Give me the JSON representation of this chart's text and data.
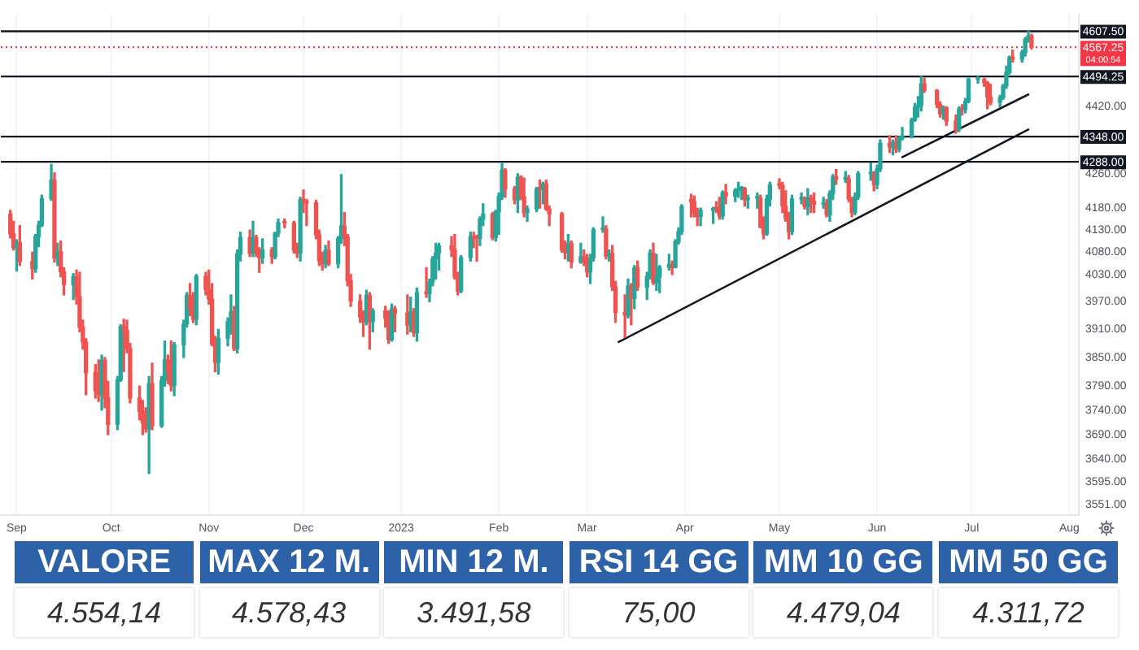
{
  "chart_data": [
    {
      "type": "candlestick",
      "x": [
        "2022-08-30",
        "2022-08-31",
        "2022-09-01",
        "2022-09-02",
        "2022-09-06",
        "2022-09-07",
        "2022-09-08",
        "2022-09-09",
        "2022-09-12",
        "2022-09-13",
        "2022-09-14",
        "2022-09-15",
        "2022-09-16",
        "2022-09-19",
        "2022-09-20",
        "2022-09-21",
        "2022-09-22",
        "2022-09-23",
        "2022-09-26",
        "2022-09-27",
        "2022-09-28",
        "2022-09-29",
        "2022-09-30",
        "2022-10-03",
        "2022-10-04",
        "2022-10-05",
        "2022-10-06",
        "2022-10-07",
        "2022-10-10",
        "2022-10-11",
        "2022-10-12",
        "2022-10-13",
        "2022-10-14",
        "2022-10-17",
        "2022-10-18",
        "2022-10-19",
        "2022-10-20",
        "2022-10-21",
        "2022-10-24",
        "2022-10-25",
        "2022-10-26",
        "2022-10-27",
        "2022-10-28",
        "2022-10-31",
        "2022-11-01",
        "2022-11-02",
        "2022-11-03",
        "2022-11-04",
        "2022-11-07",
        "2022-11-08",
        "2022-11-09",
        "2022-11-10",
        "2022-11-11",
        "2022-11-14",
        "2022-11-15",
        "2022-11-16",
        "2022-11-17",
        "2022-11-18",
        "2022-11-21",
        "2022-11-22",
        "2022-11-23",
        "2022-11-25",
        "2022-11-28",
        "2022-11-29",
        "2022-11-30",
        "2022-12-01",
        "2022-12-02",
        "2022-12-05",
        "2022-12-06",
        "2022-12-07",
        "2022-12-08",
        "2022-12-09",
        "2022-12-12",
        "2022-12-13",
        "2022-12-14",
        "2022-12-15",
        "2022-12-16",
        "2022-12-19",
        "2022-12-20",
        "2022-12-21",
        "2022-12-22",
        "2022-12-23",
        "2022-12-27",
        "2022-12-28",
        "2022-12-29",
        "2022-12-30",
        "2023-01-03",
        "2023-01-04",
        "2023-01-05",
        "2023-01-06",
        "2023-01-09",
        "2023-01-10",
        "2023-01-11",
        "2023-01-12",
        "2023-01-13",
        "2023-01-17",
        "2023-01-18",
        "2023-01-19",
        "2023-01-20",
        "2023-01-23",
        "2023-01-24",
        "2023-01-25",
        "2023-01-26",
        "2023-01-27",
        "2023-01-30",
        "2023-01-31",
        "2023-02-01",
        "2023-02-02",
        "2023-02-03",
        "2023-02-06",
        "2023-02-07",
        "2023-02-08",
        "2023-02-09",
        "2023-02-10",
        "2023-02-13",
        "2023-02-14",
        "2023-02-15",
        "2023-02-16",
        "2023-02-17",
        "2023-02-21",
        "2023-02-22",
        "2023-02-23",
        "2023-02-24",
        "2023-02-27",
        "2023-02-28",
        "2023-03-01",
        "2023-03-02",
        "2023-03-03",
        "2023-03-06",
        "2023-03-07",
        "2023-03-08",
        "2023-03-09",
        "2023-03-10",
        "2023-03-13",
        "2023-03-14",
        "2023-03-15",
        "2023-03-16",
        "2023-03-17",
        "2023-03-20",
        "2023-03-21",
        "2023-03-22",
        "2023-03-23",
        "2023-03-24",
        "2023-03-27",
        "2023-03-28",
        "2023-03-29",
        "2023-03-30",
        "2023-03-31",
        "2023-04-03",
        "2023-04-04",
        "2023-04-05",
        "2023-04-06",
        "2023-04-10",
        "2023-04-11",
        "2023-04-12",
        "2023-04-13",
        "2023-04-14",
        "2023-04-17",
        "2023-04-18",
        "2023-04-19",
        "2023-04-20",
        "2023-04-21",
        "2023-04-24",
        "2023-04-25",
        "2023-04-26",
        "2023-04-27",
        "2023-04-28",
        "2023-05-01",
        "2023-05-02",
        "2023-05-03",
        "2023-05-04",
        "2023-05-05",
        "2023-05-08",
        "2023-05-09",
        "2023-05-10",
        "2023-05-11",
        "2023-05-12",
        "2023-05-15",
        "2023-05-16",
        "2023-05-17",
        "2023-05-18",
        "2023-05-19",
        "2023-05-22",
        "2023-05-23",
        "2023-05-24",
        "2023-05-25",
        "2023-05-26",
        "2023-05-30",
        "2023-05-31",
        "2023-06-01",
        "2023-06-02",
        "2023-06-05",
        "2023-06-06",
        "2023-06-07",
        "2023-06-08",
        "2023-06-09",
        "2023-06-12",
        "2023-06-13",
        "2023-06-14",
        "2023-06-15",
        "2023-06-16",
        "2023-06-20",
        "2023-06-21",
        "2023-06-22",
        "2023-06-23",
        "2023-06-26",
        "2023-06-27",
        "2023-06-28",
        "2023-06-29",
        "2023-06-30",
        "2023-07-03",
        "2023-07-05",
        "2023-07-06",
        "2023-07-07",
        "2023-07-10",
        "2023-07-11",
        "2023-07-12",
        "2023-07-13",
        "2023-07-14",
        "2023-07-17",
        "2023-07-18",
        "2023-07-19",
        "2023-07-20"
      ],
      "ohlc": [
        [
          4166,
          4175,
          4112,
          4121
        ],
        [
          4121,
          4150,
          4085,
          4090
        ],
        [
          4090,
          4108,
          4038,
          4101
        ],
        [
          4101,
          4140,
          4050,
          4059
        ],
        [
          4059,
          4080,
          4020,
          4043
        ],
        [
          4043,
          4120,
          4035,
          4115
        ],
        [
          4115,
          4150,
          4092,
          4141
        ],
        [
          4141,
          4210,
          4138,
          4202
        ],
        [
          4202,
          4282,
          4198,
          4245
        ],
        [
          4245,
          4262,
          4058,
          4067
        ],
        [
          4067,
          4100,
          4050,
          4081
        ],
        [
          4081,
          4105,
          4025,
          4036
        ],
        [
          4036,
          4045,
          3985,
          4008
        ],
        [
          4008,
          4032,
          3975,
          4025
        ],
        [
          4025,
          4040,
          3965,
          3981
        ],
        [
          3981,
          4035,
          3905,
          3915
        ],
        [
          3915,
          3930,
          3868,
          3883
        ],
        [
          3883,
          3890,
          3772,
          3818
        ],
        [
          3818,
          3835,
          3765,
          3780
        ],
        [
          3780,
          3845,
          3758,
          3772
        ],
        [
          3772,
          3855,
          3740,
          3844
        ],
        [
          3844,
          3850,
          3745,
          3765
        ],
        [
          3765,
          3800,
          3690,
          3711
        ],
        [
          3711,
          3810,
          3700,
          3803
        ],
        [
          3803,
          3920,
          3800,
          3916
        ],
        [
          3916,
          3932,
          3820,
          3908
        ],
        [
          3908,
          3930,
          3860,
          3869
        ],
        [
          3869,
          3880,
          3755,
          3765
        ],
        [
          3765,
          3790,
          3720,
          3737
        ],
        [
          3737,
          3760,
          3690,
          3714
        ],
        [
          3714,
          3745,
          3695,
          3702
        ],
        [
          3702,
          3810,
          3612,
          3795
        ],
        [
          3795,
          3838,
          3700,
          3708
        ],
        [
          3708,
          3810,
          3705,
          3802
        ],
        [
          3802,
          3885,
          3790,
          3845
        ],
        [
          3845,
          3855,
          3795,
          3820
        ],
        [
          3820,
          3885,
          3780,
          3791
        ],
        [
          3791,
          3882,
          3770,
          3877
        ],
        [
          3877,
          3930,
          3850,
          3922
        ],
        [
          3922,
          3990,
          3915,
          3984
        ],
        [
          3984,
          4010,
          3940,
          3955
        ],
        [
          3955,
          3990,
          3925,
          3932
        ],
        [
          3932,
          4030,
          3920,
          4026
        ],
        [
          4026,
          4035,
          3985,
          3997
        ],
        [
          3997,
          4040,
          3965,
          3976
        ],
        [
          3976,
          4010,
          3875,
          3879
        ],
        [
          3879,
          3895,
          3820,
          3840
        ],
        [
          3840,
          3910,
          3815,
          3891
        ],
        [
          3891,
          3935,
          3875,
          3927
        ],
        [
          3927,
          3985,
          3900,
          3948
        ],
        [
          3948,
          3960,
          3865,
          3869
        ],
        [
          3869,
          4085,
          3860,
          4076
        ],
        [
          4076,
          4125,
          4060,
          4113
        ],
        [
          4113,
          4130,
          4070,
          4077
        ],
        [
          4077,
          4150,
          4070,
          4112
        ],
        [
          4112,
          4118,
          4070,
          4079
        ],
        [
          4079,
          4090,
          4035,
          4067
        ],
        [
          4067,
          4110,
          4055,
          4085
        ],
        [
          4085,
          4090,
          4055,
          4070
        ],
        [
          4070,
          4125,
          4065,
          4123
        ],
        [
          4123,
          4155,
          4115,
          4147
        ],
        [
          4147,
          4155,
          4135,
          4146
        ],
        [
          4146,
          4150,
          4078,
          4084
        ],
        [
          4084,
          4100,
          4068,
          4078
        ],
        [
          4078,
          4205,
          4060,
          4200
        ],
        [
          4200,
          4222,
          4170,
          4196
        ],
        [
          4196,
          4200,
          4140,
          4192
        ],
        [
          4192,
          4198,
          4110,
          4119
        ],
        [
          4119,
          4130,
          4050,
          4061
        ],
        [
          4061,
          4080,
          4040,
          4054
        ],
        [
          4054,
          4095,
          4045,
          4084
        ],
        [
          4084,
          4105,
          4050,
          4054
        ],
        [
          4054,
          4115,
          4045,
          4111
        ],
        [
          4111,
          4258,
          4100,
          4139
        ],
        [
          4139,
          4170,
          4095,
          4115
        ],
        [
          4115,
          4120,
          4005,
          4016
        ],
        [
          4016,
          4030,
          3960,
          3972
        ],
        [
          3972,
          3985,
          3925,
          3937
        ],
        [
          3937,
          3950,
          3895,
          3926
        ],
        [
          3926,
          3995,
          3920,
          3984
        ],
        [
          3984,
          3990,
          3868,
          3927
        ],
        [
          3927,
          3955,
          3905,
          3950
        ],
        [
          3950,
          3960,
          3915,
          3934
        ],
        [
          3934,
          3950,
          3880,
          3888
        ],
        [
          3888,
          3965,
          3885,
          3954
        ],
        [
          3954,
          3960,
          3905,
          3945
        ],
        [
          3945,
          3985,
          3900,
          3919
        ],
        [
          3919,
          3980,
          3905,
          3948
        ],
        [
          3948,
          3955,
          3895,
          3903
        ],
        [
          3903,
          4000,
          3885,
          3990
        ],
        [
          3990,
          4045,
          3980,
          3988
        ],
        [
          3988,
          4020,
          3970,
          4014
        ],
        [
          4014,
          4070,
          4005,
          4065
        ],
        [
          4065,
          4100,
          4020,
          4078
        ],
        [
          4078,
          4100,
          4040,
          4094
        ],
        [
          4094,
          4115,
          4070,
          4086
        ],
        [
          4086,
          4120,
          4020,
          4024
        ],
        [
          4024,
          4035,
          3985,
          3993
        ],
        [
          3993,
          4072,
          3990,
          4068
        ],
        [
          4068,
          4125,
          4060,
          4115
        ],
        [
          4115,
          4125,
          4090,
          4112
        ],
        [
          4112,
          4118,
          4060,
          4111
        ],
        [
          4111,
          4160,
          4095,
          4155
        ],
        [
          4155,
          4190,
          4140,
          4166
        ],
        [
          4166,
          4170,
          4108,
          4113
        ],
        [
          4113,
          4175,
          4105,
          4172
        ],
        [
          4172,
          4215,
          4120,
          4207
        ],
        [
          4207,
          4284,
          4200,
          4268
        ],
        [
          4268,
          4272,
          4205,
          4224
        ],
        [
          4224,
          4230,
          4190,
          4199
        ],
        [
          4199,
          4260,
          4170,
          4252
        ],
        [
          4252,
          4255,
          4200,
          4206
        ],
        [
          4206,
          4250,
          4160,
          4170
        ],
        [
          4170,
          4185,
          4150,
          4178
        ],
        [
          4178,
          4228,
          4172,
          4225
        ],
        [
          4225,
          4245,
          4180,
          4224
        ],
        [
          4224,
          4240,
          4190,
          4236
        ],
        [
          4236,
          4245,
          4175,
          4178
        ],
        [
          4178,
          4185,
          4140,
          4167
        ],
        [
          4167,
          4170,
          4080,
          4085
        ],
        [
          4085,
          4105,
          4065,
          4079
        ],
        [
          4079,
          4120,
          4060,
          4100
        ],
        [
          4100,
          4105,
          4045,
          4058
        ],
        [
          4058,
          4100,
          4055,
          4070
        ],
        [
          4070,
          4085,
          4050,
          4058
        ],
        [
          4058,
          4075,
          4025,
          4036
        ],
        [
          4036,
          4075,
          4010,
          4067
        ],
        [
          4067,
          4135,
          4060,
          4131
        ],
        [
          4131,
          4160,
          4125,
          4133
        ],
        [
          4133,
          4140,
          4065,
          4071
        ],
        [
          4071,
          4085,
          4060,
          4077
        ],
        [
          4077,
          4095,
          3995,
          4003
        ],
        [
          4003,
          4015,
          3925,
          3947
        ],
        [
          3947,
          3985,
          3893,
          3941
        ],
        [
          3941,
          4020,
          3935,
          4005
        ],
        [
          4005,
          4010,
          3920,
          3977
        ],
        [
          3977,
          4050,
          3955,
          4045
        ],
        [
          4045,
          4060,
          3995,
          4002
        ],
        [
          4002,
          4035,
          3975,
          4026
        ],
        [
          4026,
          4085,
          4020,
          4078
        ],
        [
          4078,
          4100,
          4008,
          4012
        ],
        [
          4012,
          4075,
          3995,
          4024
        ],
        [
          4024,
          4050,
          3990,
          4046
        ],
        [
          4046,
          4075,
          4040,
          4052
        ],
        [
          4052,
          4060,
          4030,
          4046
        ],
        [
          4046,
          4108,
          4045,
          4103
        ],
        [
          4103,
          4135,
          4098,
          4126
        ],
        [
          4126,
          4188,
          4120,
          4184
        ],
        [
          4200,
          4212,
          4160,
          4195
        ],
        [
          4195,
          4208,
          4160,
          4171
        ],
        [
          4171,
          4180,
          4140,
          4161
        ],
        [
          4161,
          4180,
          4140,
          4175
        ],
        [
          4175,
          4182,
          4145,
          4179
        ],
        [
          4179,
          4195,
          4170,
          4178
        ],
        [
          4178,
          4205,
          4155,
          4162
        ],
        [
          4162,
          4220,
          4155,
          4216
        ],
        [
          4216,
          4235,
          4190,
          4208
        ],
        [
          4208,
          4225,
          4195,
          4221
        ],
        [
          4221,
          4240,
          4205,
          4224
        ],
        [
          4224,
          4230,
          4200,
          4225
        ],
        [
          4225,
          4228,
          4185,
          4200
        ],
        [
          4200,
          4210,
          4180,
          4203
        ],
        [
          4203,
          4215,
          4180,
          4203
        ],
        [
          4203,
          4210,
          4135,
          4137
        ],
        [
          4137,
          4160,
          4110,
          4121
        ],
        [
          4121,
          4210,
          4118,
          4201
        ],
        [
          4201,
          4240,
          4185,
          4234
        ],
        [
          4234,
          4248,
          4225,
          4233
        ],
        [
          4233,
          4240,
          4170,
          4185
        ],
        [
          4185,
          4220,
          4150,
          4156
        ],
        [
          4156,
          4170,
          4110,
          4126
        ],
        [
          4126,
          4210,
          4120,
          4201
        ],
        [
          4201,
          4215,
          4190,
          4203
        ],
        [
          4203,
          4206,
          4178,
          4184
        ],
        [
          4184,
          4225,
          4165,
          4203
        ],
        [
          4203,
          4210,
          4170,
          4196
        ],
        [
          4196,
          4215,
          4170,
          4189
        ],
        [
          4189,
          4205,
          4180,
          4191
        ],
        [
          4191,
          4200,
          4160,
          4165
        ],
        [
          4165,
          4220,
          4150,
          4214
        ],
        [
          4214,
          4258,
          4200,
          4253
        ],
        [
          4253,
          4270,
          4235,
          4247
        ],
        [
          4247,
          4265,
          4240,
          4248
        ],
        [
          4248,
          4256,
          4195,
          4201
        ],
        [
          4201,
          4205,
          4160,
          4170
        ],
        [
          4170,
          4215,
          4165,
          4206
        ],
        [
          4206,
          4265,
          4200,
          4260
        ],
        [
          4260,
          4285,
          4245,
          4261
        ],
        [
          4261,
          4265,
          4220,
          4235
        ],
        [
          4235,
          4280,
          4225,
          4271
        ],
        [
          4271,
          4340,
          4265,
          4332
        ],
        [
          4332,
          4350,
          4310,
          4323
        ],
        [
          4323,
          4340,
          4305,
          4334
        ],
        [
          4334,
          4350,
          4310,
          4318
        ],
        [
          4318,
          4348,
          4312,
          4344
        ],
        [
          4344,
          4370,
          4340,
          4349
        ],
        [
          4349,
          4392,
          4345,
          4388
        ],
        [
          4388,
          4428,
          4385,
          4419
        ],
        [
          4419,
          4445,
          4395,
          4423
        ],
        [
          4423,
          4494.25,
          4410,
          4476
        ],
        [
          4476,
          4490,
          4455,
          4460
        ],
        [
          4460,
          4462,
          4418,
          4426
        ],
        [
          4426,
          4432,
          4395,
          4403
        ],
        [
          4403,
          4422,
          4390,
          4418
        ],
        [
          4418,
          4420,
          4375,
          4385
        ],
        [
          4385,
          4400,
          4356,
          4365
        ],
        [
          4365,
          4420,
          4360,
          4415
        ],
        [
          4415,
          4425,
          4400,
          4413
        ],
        [
          4413,
          4440,
          4405,
          4433
        ],
        [
          4433,
          4490,
          4430,
          4487
        ],
        [
          4487,
          4494,
          4478,
          4487
        ],
        [
          4487,
          4490,
          4470,
          4479
        ],
        [
          4479,
          4482,
          4415,
          4444
        ],
        [
          4444,
          4475,
          4425,
          4431
        ],
        [
          4431,
          4448,
          4420,
          4442
        ],
        [
          4442,
          4475,
          4438,
          4471
        ],
        [
          4471,
          4520,
          4465,
          4504
        ],
        [
          4504,
          4545,
          4500,
          4542
        ],
        [
          4542,
          4560,
          4530,
          4537
        ],
        [
          4537,
          4560,
          4530,
          4554
        ],
        [
          4554,
          4592,
          4545,
          4587
        ],
        [
          4587,
          4607.5,
          4580,
          4596
        ],
        [
          4596,
          4600,
          4563,
          4567.25
        ]
      ],
      "colors": [
        "#ef5350",
        "#ef5350",
        "#26a69a",
        "#ef5350",
        "#ef5350",
        "#26a69a",
        "#26a69a",
        "#26a69a",
        "#26a69a",
        "#ef5350",
        "#26a69a",
        "#ef5350",
        "#ef5350",
        "#26a69a",
        "#ef5350",
        "#ef5350",
        "#ef5350",
        "#ef5350",
        "#ef5350",
        "#ef5350",
        "#26a69a",
        "#ef5350",
        "#ef5350",
        "#26a69a",
        "#26a69a",
        "#ef5350",
        "#ef5350",
        "#ef5350",
        "#ef5350",
        "#ef5350",
        "#ef5350",
        "#26a69a",
        "#ef5350",
        "#26a69a",
        "#26a69a",
        "#ef5350",
        "#ef5350",
        "#26a69a",
        "#26a69a",
        "#26a69a",
        "#ef5350",
        "#ef5350",
        "#26a69a",
        "#ef5350",
        "#ef5350",
        "#ef5350",
        "#ef5350",
        "#26a69a",
        "#26a69a",
        "#26a69a",
        "#ef5350",
        "#26a69a",
        "#26a69a",
        "#ef5350",
        "#26a69a",
        "#ef5350",
        "#ef5350",
        "#26a69a",
        "#ef5350",
        "#26a69a",
        "#26a69a",
        "#ef5350",
        "#ef5350",
        "#ef5350",
        "#26a69a",
        "#ef5350",
        "#ef5350",
        "#ef5350",
        "#ef5350",
        "#ef5350",
        "#26a69a",
        "#ef5350",
        "#26a69a",
        "#26a69a",
        "#ef5350",
        "#ef5350",
        "#ef5350",
        "#ef5350",
        "#ef5350",
        "#26a69a",
        "#ef5350",
        "#26a69a",
        "#ef5350",
        "#ef5350",
        "#26a69a",
        "#ef5350",
        "#ef5350",
        "#26a69a",
        "#ef5350",
        "#26a69a",
        "#ef5350",
        "#26a69a",
        "#26a69a",
        "#26a69a",
        "#26a69a",
        "#ef5350",
        "#ef5350",
        "#ef5350",
        "#26a69a",
        "#26a69a",
        "#ef5350",
        "#ef5350",
        "#26a69a",
        "#26a69a",
        "#ef5350",
        "#26a69a",
        "#26a69a",
        "#26a69a",
        "#ef5350",
        "#ef5350",
        "#26a69a",
        "#ef5350",
        "#ef5350",
        "#26a69a",
        "#26a69a",
        "#ef5350",
        "#26a69a",
        "#ef5350",
        "#ef5350",
        "#ef5350",
        "#ef5350",
        "#26a69a",
        "#ef5350",
        "#26a69a",
        "#ef5350",
        "#ef5350",
        "#26a69a",
        "#26a69a",
        "#26a69a",
        "#ef5350",
        "#26a69a",
        "#ef5350",
        "#ef5350",
        "#ef5350",
        "#26a69a",
        "#ef5350",
        "#26a69a",
        "#ef5350",
        "#26a69a",
        "#26a69a",
        "#ef5350",
        "#26a69a",
        "#26a69a",
        "#26a69a",
        "#ef5350",
        "#26a69a",
        "#26a69a",
        "#26a69a",
        "#ef5350",
        "#ef5350",
        "#ef5350",
        "#26a69a",
        "#26a69a",
        "#ef5350",
        "#ef5350",
        "#26a69a",
        "#ef5350",
        "#26a69a",
        "#26a69a",
        "#26a69a",
        "#ef5350",
        "#26a69a",
        "#26a69a",
        "#ef5350",
        "#ef5350",
        "#26a69a",
        "#26a69a",
        "#ef5350",
        "#ef5350",
        "#ef5350",
        "#ef5350",
        "#26a69a",
        "#26a69a",
        "#ef5350",
        "#26a69a",
        "#ef5350",
        "#ef5350",
        "#26a69a",
        "#ef5350",
        "#26a69a",
        "#26a69a",
        "#ef5350",
        "#26a69a",
        "#ef5350",
        "#ef5350",
        "#26a69a",
        "#26a69a",
        "#26a69a",
        "#ef5350",
        "#26a69a",
        "#26a69a",
        "#ef5350",
        "#26a69a",
        "#ef5350",
        "#26a69a",
        "#26a69a",
        "#26a69a",
        "#26a69a",
        "#26a69a",
        "#26a69a",
        "#ef5350",
        "#ef5350",
        "#ef5350",
        "#26a69a",
        "#ef5350",
        "#ef5350",
        "#26a69a",
        "#ef5350",
        "#26a69a",
        "#26a69a",
        "#26a69a",
        "#ef5350",
        "#ef5350",
        "#ef5350",
        "#26a69a",
        "#26a69a",
        "#26a69a",
        "#26a69a",
        "#ef5350",
        "#26a69a",
        "#26a69a",
        "#26a69a",
        "#ef5350"
      ],
      "series": [
        {
          "type": "line",
          "x": [
            "2023-03-11",
            "2023-07-19"
          ],
          "values": [
            3883,
            4365
          ],
          "color": "#131722"
        },
        {
          "type": "line",
          "x": [
            "2023-06-09",
            "2023-07-19"
          ],
          "values": [
            4299,
            4450
          ],
          "color": "#131722"
        }
      ],
      "xlim": [
        "2022-08-27",
        "2023-08-04"
      ],
      "xticks": [
        {
          "value": "2022-09-01",
          "label": "Sep"
        },
        {
          "value": "2022-10-01",
          "label": "Oct"
        },
        {
          "value": "2022-11-01",
          "label": "Nov"
        },
        {
          "value": "2022-12-01",
          "label": "Dec"
        },
        {
          "value": "2023-01-01",
          "label": "2023"
        },
        {
          "value": "2023-02-01",
          "label": "Feb"
        },
        {
          "value": "2023-03-01",
          "label": "Mar"
        },
        {
          "value": "2023-04-01",
          "label": "Apr"
        },
        {
          "value": "2023-05-01",
          "label": "May"
        },
        {
          "value": "2023-06-01",
          "label": "Jun"
        },
        {
          "value": "2023-07-01",
          "label": "Jul"
        },
        {
          "value": "2023-08-01",
          "label": "Aug"
        }
      ],
      "ylim": [
        3530,
        4650
      ],
      "yticks": [
        {
          "value": 4420,
          "label": "4420.00"
        },
        {
          "value": 4260,
          "label": "4260.00"
        },
        {
          "value": 4180,
          "label": "4180.00"
        },
        {
          "value": 4130,
          "label": "4130.00"
        },
        {
          "value": 4080,
          "label": "4080.00"
        },
        {
          "value": 4030,
          "label": "4030.00"
        },
        {
          "value": 3970,
          "label": "3970.00"
        },
        {
          "value": 3910,
          "label": "3910.00"
        },
        {
          "value": 3850,
          "label": "3850.00"
        },
        {
          "value": 3790,
          "label": "3790.00"
        },
        {
          "value": 3740,
          "label": "3740.00"
        },
        {
          "value": 3690,
          "label": "3690.00"
        },
        {
          "value": 3640,
          "label": "3640.00"
        },
        {
          "value": 3595,
          "label": "3595.00"
        },
        {
          "value": 3551,
          "label": "3551.00"
        }
      ],
      "log": true,
      "grid": "x",
      "ref_lines": [
        {
          "axis": "y",
          "value": 4607.5,
          "label": "4607.50",
          "color": "#131722"
        },
        {
          "axis": "y",
          "value": 4567.25,
          "label": "4567.25",
          "color": "#f23645",
          "line_style": "dotted"
        },
        {
          "axis": "y",
          "value": 4494.25,
          "label": "4494.25",
          "color": "#131722"
        },
        {
          "axis": "y",
          "value": 4348,
          "label": "4348.00",
          "color": "#131722"
        },
        {
          "axis": "y",
          "value": 4288,
          "label": "4288.00",
          "color": "#131722"
        }
      ],
      "annotations": [
        {
          "text": "04:00:54",
          "y": 4567.25
        }
      ]
    },
    {
      "type": "other",
      "categories": [
        "VALORE",
        "MAX 12 M.",
        "MIN 12 M.",
        "RSI 14 GG",
        "MM 10 GG",
        "MM 50 GG"
      ],
      "value_labels": [
        "4.554,14",
        "4.578,43",
        "3.491,58",
        "75,00",
        "4.479,04",
        "4.311,72"
      ],
      "color": "#2e62a8"
    }
  ]
}
